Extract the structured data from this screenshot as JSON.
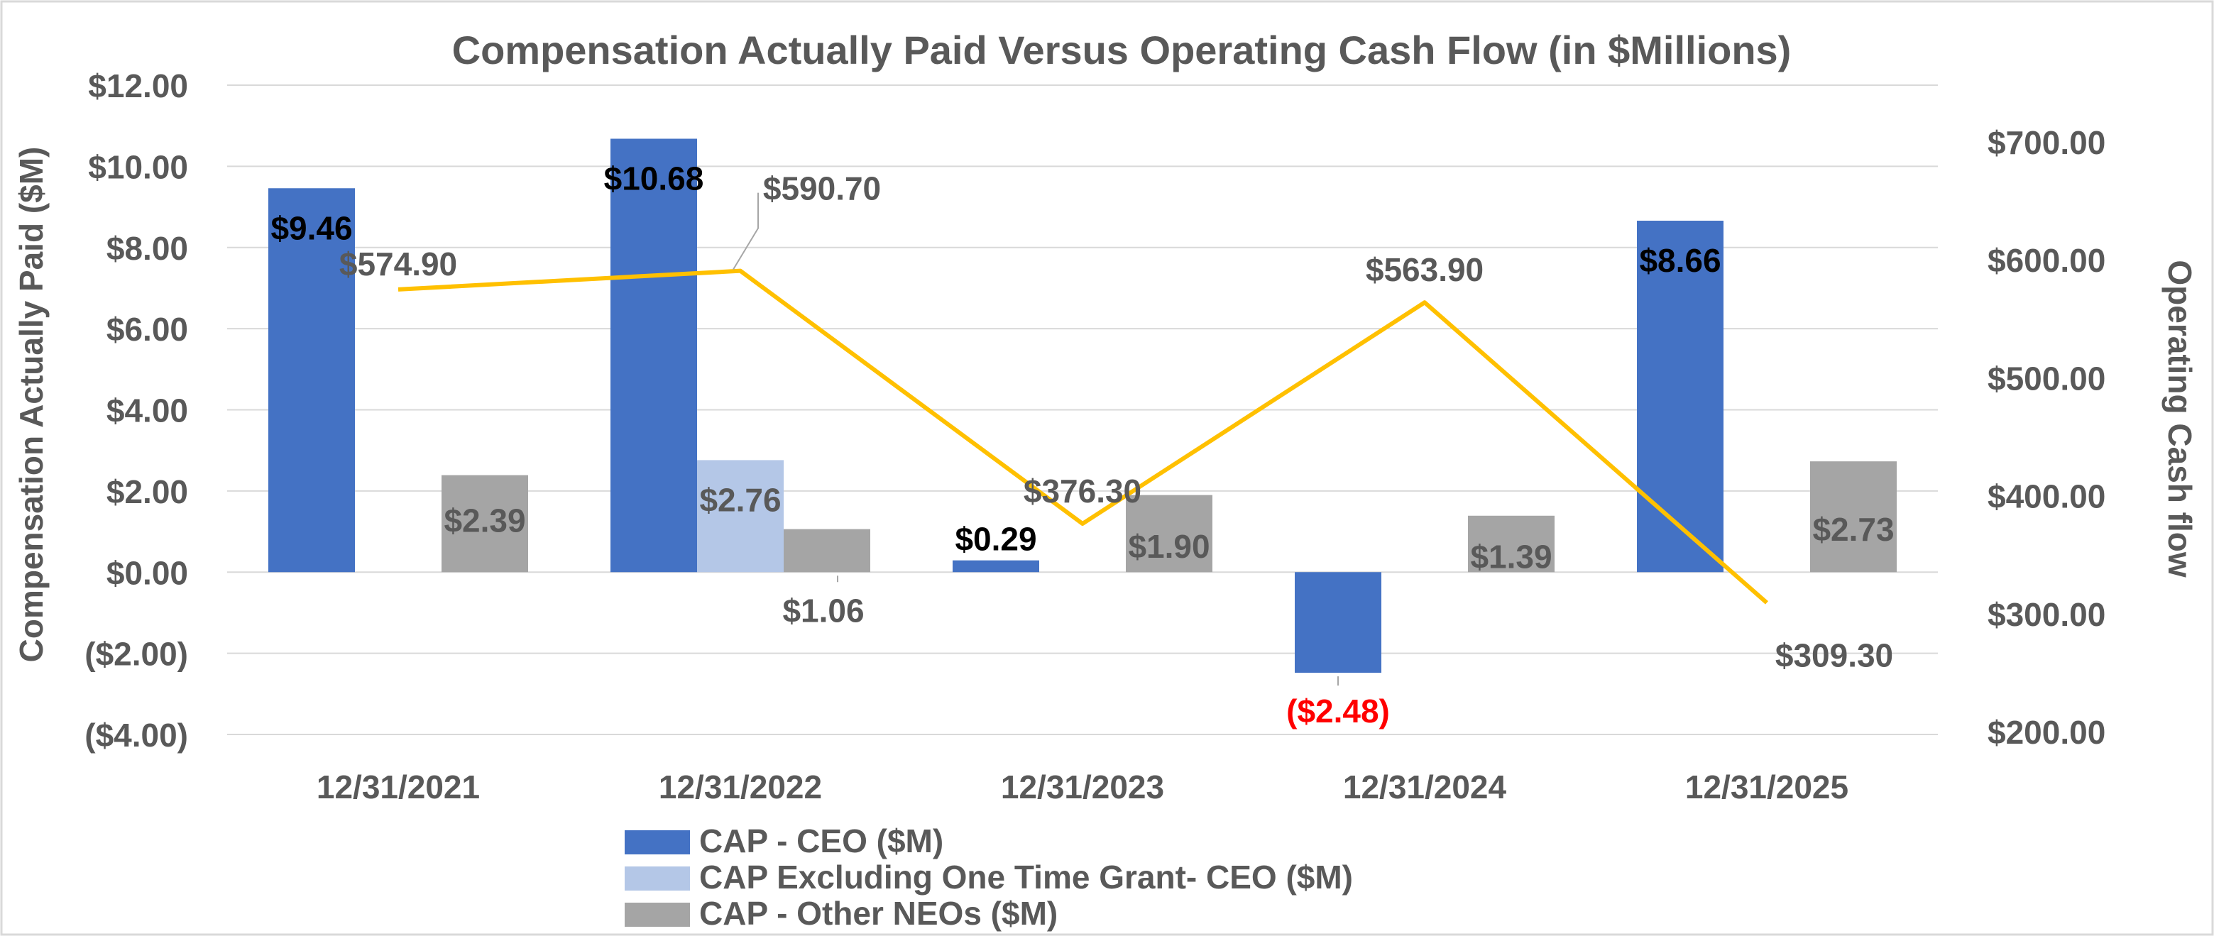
{
  "chart_data": {
    "type": "bar",
    "title": "Compensation Actually Paid Versus Operating Cash Flow (in $Millions)",
    "ylabel": "Compensation Actually Paid ($M)",
    "y2label": "Operating Cash flow",
    "categories": [
      "12/31/2021",
      "12/31/2022",
      "12/31/2023",
      "12/31/2024",
      "12/31/2025"
    ],
    "ylim": [
      -4,
      12
    ],
    "y_ticks": [
      -4,
      -2,
      0,
      2,
      4,
      6,
      8,
      10,
      12
    ],
    "y_tick_labels": [
      "($4.00)",
      "($2.00)",
      "$0.00",
      "$2.00",
      "$4.00",
      "$6.00",
      "$8.00",
      "$10.00",
      "$12.00"
    ],
    "y2lim": [
      200,
      700
    ],
    "y2_ticks": [
      200,
      300,
      400,
      500,
      600,
      700
    ],
    "y2_tick_labels": [
      "$200.00",
      "$300.00",
      "$400.00",
      "$500.00",
      "$600.00",
      "$700.00"
    ],
    "grid": true,
    "legend_position": "bottom",
    "series": [
      {
        "name": "CAP - CEO ($M)",
        "kind": "bar",
        "axis": "left",
        "color": "#4472C4",
        "values": [
          9.46,
          10.68,
          0.29,
          -2.48,
          8.66
        ],
        "labels": [
          "$9.46",
          "$10.68",
          "$0.29",
          "($2.48)",
          "$8.66"
        ]
      },
      {
        "name": "CAP Excluding One Time Grant- CEO ($M)",
        "kind": "bar",
        "axis": "left",
        "color": "#B4C7E7",
        "values": [
          null,
          2.76,
          null,
          null,
          null
        ],
        "labels": [
          null,
          "$2.76",
          null,
          null,
          null
        ]
      },
      {
        "name": "CAP - Other NEOs ($M)",
        "kind": "bar",
        "axis": "left",
        "color": "#A5A5A5",
        "values": [
          2.39,
          1.06,
          1.9,
          1.39,
          2.73
        ],
        "labels": [
          "$2.39",
          "$1.06",
          "$1.90",
          "$1.39",
          "$2.73"
        ]
      },
      {
        "name": "",
        "kind": "line",
        "axis": "right",
        "color": "#FFC000",
        "values": [
          574.9,
          590.7,
          376.3,
          563.9,
          309.3
        ],
        "labels": [
          "$574.90",
          "$590.70",
          "$376.30",
          "$563.90",
          "$309.30"
        ]
      }
    ],
    "colors": {
      "text": "#595959",
      "label_dark": "#000000",
      "label_negative": "#FF0000",
      "grid": "#D9D9D9"
    }
  }
}
